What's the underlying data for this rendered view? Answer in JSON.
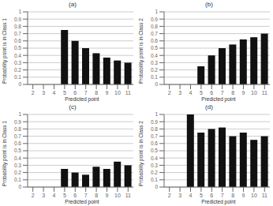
{
  "chart_data": [
    {
      "type": "bar",
      "title": "(a)",
      "xlabel": "Predicted point",
      "ylabel": "Probability point is in Class 1",
      "categories": [
        "2",
        "3",
        "4",
        "5",
        "6",
        "7",
        "8",
        "9",
        "10",
        "11"
      ],
      "values": [
        0,
        0,
        0,
        0.75,
        0.6,
        0.5,
        0.43,
        0.37,
        0.33,
        0.3
      ],
      "color": "#111111",
      "ylim": [
        0,
        1
      ],
      "yticks": [
        0,
        0.1,
        0.2,
        0.3,
        0.4,
        0.5,
        0.6,
        0.7,
        0.8,
        0.9,
        1
      ],
      "grid": true
    },
    {
      "type": "bar",
      "title": "(b)",
      "xlabel": "Predicted point",
      "ylabel": "Probability point is in Class 2",
      "categories": [
        "2",
        "3",
        "4",
        "5",
        "6",
        "7",
        "8",
        "9",
        "10",
        "11"
      ],
      "values": [
        0,
        0,
        0,
        0.25,
        0.4,
        0.5,
        0.55,
        0.62,
        0.65,
        0.7
      ],
      "color": "#111111",
      "ylim": [
        0,
        1
      ],
      "yticks": [
        0,
        0.1,
        0.2,
        0.3,
        0.4,
        0.5,
        0.6,
        0.7,
        0.8,
        0.9,
        1
      ],
      "grid": true
    },
    {
      "type": "bar",
      "title": "(c)",
      "xlabel": "Predicted point",
      "ylabel": "Probability point is in Class 1",
      "categories": [
        "2",
        "3",
        "4",
        "5",
        "6",
        "7",
        "8",
        "9",
        "10",
        "11"
      ],
      "values": [
        0,
        0,
        0,
        0.25,
        0.2,
        0.17,
        0.28,
        0.25,
        0.35,
        0.3
      ],
      "color": "#111111",
      "ylim": [
        0,
        1
      ],
      "yticks": [
        0,
        0.1,
        0.2,
        0.3,
        0.4,
        0.5,
        0.6,
        0.7,
        0.8,
        0.9,
        1
      ],
      "grid": true
    },
    {
      "type": "bar",
      "title": "(d)",
      "xlabel": "Predicted point",
      "ylabel": "Probability point is in Class 2",
      "categories": [
        "2",
        "3",
        "4",
        "5",
        "6",
        "7",
        "8",
        "9",
        "10",
        "11"
      ],
      "values": [
        0,
        0,
        1.0,
        0.75,
        0.8,
        0.82,
        0.7,
        0.75,
        0.65,
        0.7
      ],
      "color": "#111111",
      "ylim": [
        0,
        1
      ],
      "yticks": [
        0,
        0.1,
        0.2,
        0.3,
        0.4,
        0.5,
        0.6,
        0.7,
        0.8,
        0.9,
        1
      ],
      "grid": true
    }
  ]
}
